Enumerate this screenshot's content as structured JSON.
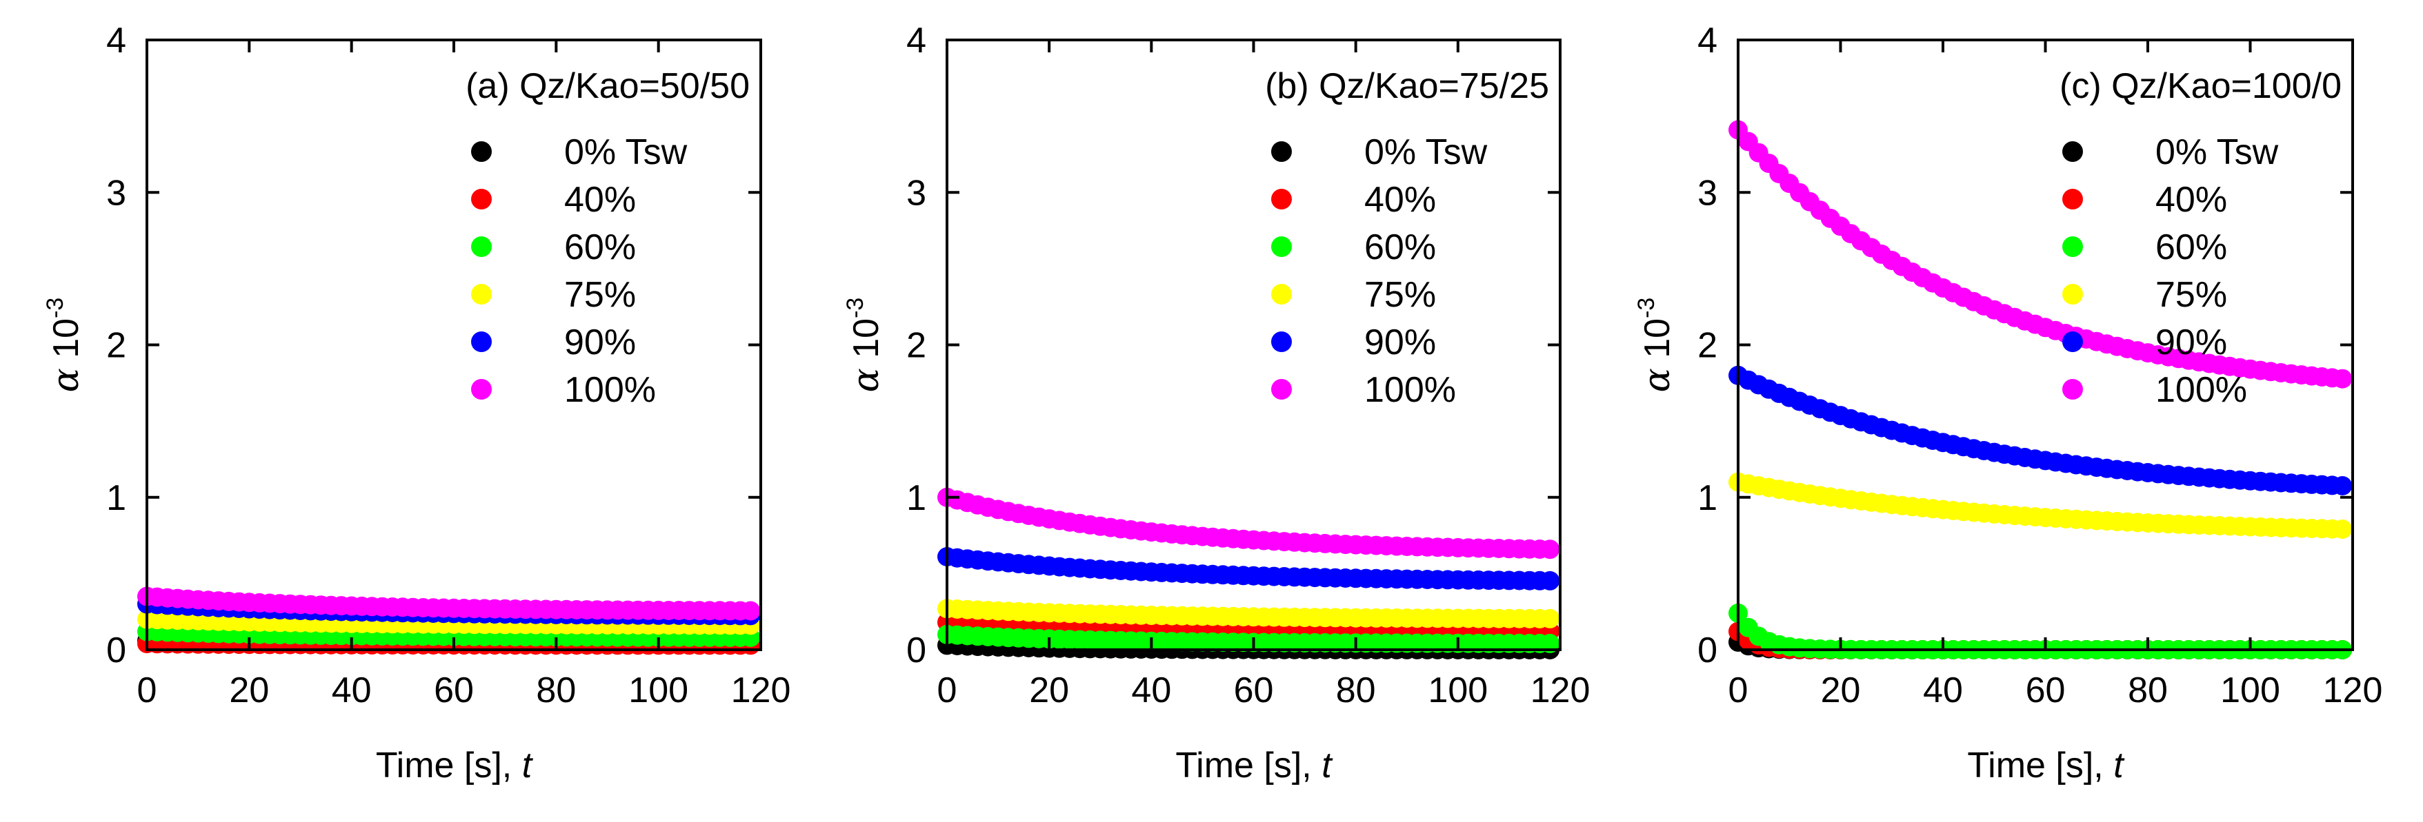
{
  "chart_data": [
    {
      "type": "scatter",
      "title": "(a) Qz/Kao=50/50",
      "xlabel": "Time [s], ",
      "xlabel_italic": "t",
      "ylabel_symbol": "α",
      "ylabel_unit": " 10",
      "ylabel_exp": "-3",
      "xlim": [
        0,
        120
      ],
      "ylim": [
        0,
        4
      ],
      "xticks": [
        "0",
        "20",
        "40",
        "60",
        "80",
        "100",
        "120"
      ],
      "yticks": [
        "0",
        "1",
        "2",
        "3",
        "4"
      ],
      "legend_position": "top-right",
      "series": [
        {
          "name": "0% Tsw",
          "color": "#000000",
          "start": 0.06,
          "end": 0.04,
          "tau": 30
        },
        {
          "name": "40%",
          "color": "#ff0000",
          "start": 0.04,
          "end": 0.03,
          "tau": 30
        },
        {
          "name": "60%",
          "color": "#00ff00",
          "start": 0.12,
          "end": 0.08,
          "tau": 35
        },
        {
          "name": "75%",
          "color": "#ffff00",
          "start": 0.2,
          "end": 0.16,
          "tau": 35
        },
        {
          "name": "90%",
          "color": "#0000ff",
          "start": 0.3,
          "end": 0.22,
          "tau": 40
        },
        {
          "name": "100%",
          "color": "#ff00ff",
          "start": 0.35,
          "end": 0.25,
          "tau": 40
        }
      ]
    },
    {
      "type": "scatter",
      "title": "(b) Qz/Kao=75/25",
      "xlabel": "Time [s], ",
      "xlabel_italic": "t",
      "ylabel_symbol": "α",
      "ylabel_unit": " 10",
      "ylabel_exp": "-3",
      "xlim": [
        0,
        120
      ],
      "ylim": [
        0,
        4
      ],
      "xticks": [
        "0",
        "20",
        "40",
        "60",
        "80",
        "100",
        "120"
      ],
      "yticks": [
        "0",
        "1",
        "2",
        "3",
        "4"
      ],
      "legend_position": "top-right",
      "series": [
        {
          "name": "0% Tsw",
          "color": "#000000",
          "start": 0.03,
          "end": 0.0,
          "tau": 20
        },
        {
          "name": "40%",
          "color": "#ff0000",
          "start": 0.18,
          "end": 0.12,
          "tau": 35
        },
        {
          "name": "60%",
          "color": "#00ff00",
          "start": 0.1,
          "end": 0.04,
          "tau": 30
        },
        {
          "name": "75%",
          "color": "#ffff00",
          "start": 0.27,
          "end": 0.2,
          "tau": 40
        },
        {
          "name": "90%",
          "color": "#0000ff",
          "start": 0.61,
          "end": 0.44,
          "tau": 45
        },
        {
          "name": "100%",
          "color": "#ff00ff",
          "start": 1.0,
          "end": 0.64,
          "tau": 40
        }
      ]
    },
    {
      "type": "scatter",
      "title": "(c) Qz/Kao=100/0",
      "xlabel": "Time [s], ",
      "xlabel_italic": "t",
      "ylabel_symbol": "α",
      "ylabel_unit": " 10",
      "ylabel_exp": "-3",
      "xlim": [
        0,
        120
      ],
      "ylim": [
        0,
        4
      ],
      "xticks": [
        "0",
        "20",
        "40",
        "60",
        "80",
        "100",
        "120"
      ],
      "yticks": [
        "0",
        "1",
        "2",
        "3",
        "4"
      ],
      "legend_position": "top-right",
      "series": [
        {
          "name": "0% Tsw",
          "color": "#000000",
          "start": 0.05,
          "end": 0.0,
          "tau": 3
        },
        {
          "name": "40%",
          "color": "#ff0000",
          "start": 0.12,
          "end": 0.0,
          "tau": 3
        },
        {
          "name": "60%",
          "color": "#00ff00",
          "start": 0.24,
          "end": 0.0,
          "tau": 4
        },
        {
          "name": "75%",
          "color": "#ffff00",
          "start": 1.1,
          "end": 0.75,
          "tau": 55
        },
        {
          "name": "90%",
          "color": "#0000ff",
          "start": 1.8,
          "end": 1.0,
          "tau": 50
        },
        {
          "name": "100%",
          "color": "#ff00ff",
          "start": 3.41,
          "end": 1.65,
          "tau": 45
        }
      ]
    }
  ]
}
